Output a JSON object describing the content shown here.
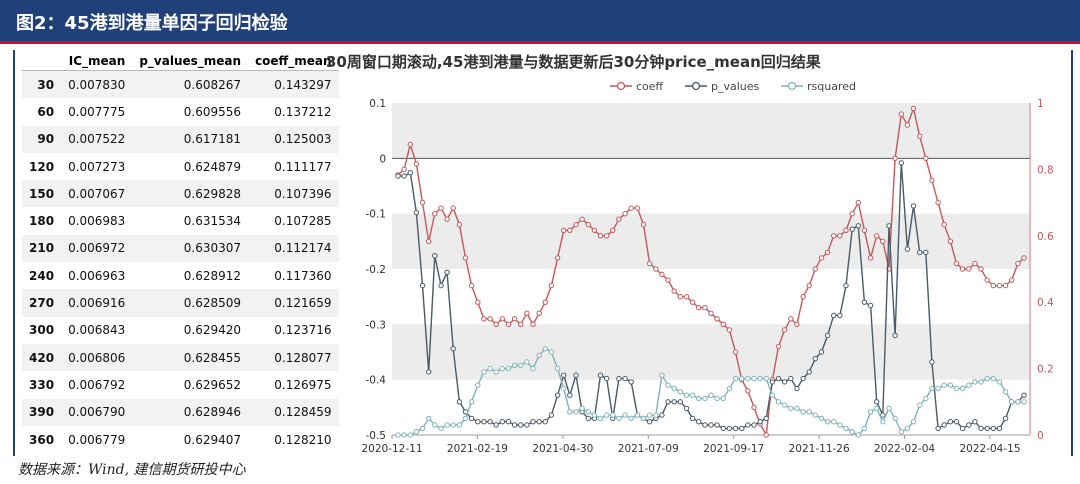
{
  "header": {
    "title": "图2：45港到港量单因子回归检验"
  },
  "table": {
    "columns": [
      "",
      "IC_mean",
      "p_values_mean",
      "coeff_mean"
    ],
    "rows": [
      [
        "30",
        "0.007830",
        "0.608267",
        "0.143297"
      ],
      [
        "60",
        "0.007775",
        "0.609556",
        "0.137212"
      ],
      [
        "90",
        "0.007522",
        "0.617181",
        "0.125003"
      ],
      [
        "120",
        "0.007273",
        "0.624879",
        "0.111177"
      ],
      [
        "150",
        "0.007067",
        "0.629828",
        "0.107396"
      ],
      [
        "180",
        "0.006983",
        "0.631534",
        "0.107285"
      ],
      [
        "210",
        "0.006972",
        "0.630307",
        "0.112174"
      ],
      [
        "240",
        "0.006963",
        "0.628912",
        "0.117360"
      ],
      [
        "270",
        "0.006916",
        "0.628509",
        "0.121659"
      ],
      [
        "300",
        "0.006843",
        "0.629420",
        "0.123716"
      ],
      [
        "420",
        "0.006806",
        "0.628455",
        "0.128077"
      ],
      [
        "330",
        "0.006792",
        "0.629652",
        "0.126975"
      ],
      [
        "390",
        "0.006790",
        "0.628946",
        "0.128459"
      ],
      [
        "360",
        "0.006779",
        "0.629407",
        "0.128210"
      ]
    ]
  },
  "chart_data": {
    "type": "line",
    "title": "30周窗口期滚动,45港到港量与数据更新后30分钟price_mean回归结果",
    "x_ticks": [
      "2020-12-11",
      "2021-02-19",
      "2021-04-30",
      "2021-07-09",
      "2021-09-17",
      "2021-11-26",
      "2022-02-04",
      "2022-04-15"
    ],
    "left_axis": {
      "ylim": [
        -0.5,
        0.1
      ],
      "ticks": [
        "0.1",
        "0",
        "-0.1",
        "-0.2",
        "-0.3",
        "-0.4",
        "-0.5"
      ],
      "series": [
        "coeff"
      ]
    },
    "right_axis": {
      "ylim": [
        0,
        1
      ],
      "ticks": [
        "1",
        "0.8",
        "0.6",
        "0.4",
        "0.2",
        "0"
      ],
      "series": [
        "p_values",
        "rsquared"
      ]
    },
    "legend_position": "top",
    "grid": "alternating horizontal bands",
    "series": [
      {
        "name": "coeff",
        "axis": "left",
        "color": "#c4585c",
        "values": [
          -0.03,
          -0.02,
          0.025,
          -0.01,
          -0.08,
          -0.15,
          -0.1,
          -0.09,
          -0.11,
          -0.09,
          -0.12,
          -0.18,
          -0.23,
          -0.26,
          -0.29,
          -0.29,
          -0.3,
          -0.29,
          -0.3,
          -0.29,
          -0.3,
          -0.28,
          -0.3,
          -0.28,
          -0.26,
          -0.23,
          -0.18,
          -0.13,
          -0.13,
          -0.12,
          -0.11,
          -0.12,
          -0.13,
          -0.14,
          -0.14,
          -0.13,
          -0.11,
          -0.1,
          -0.09,
          -0.09,
          -0.12,
          -0.19,
          -0.2,
          -0.21,
          -0.22,
          -0.24,
          -0.25,
          -0.25,
          -0.26,
          -0.27,
          -0.27,
          -0.28,
          -0.29,
          -0.3,
          -0.31,
          -0.35,
          -0.4,
          -0.42,
          -0.45,
          -0.48,
          -0.5,
          -0.4,
          -0.34,
          -0.31,
          -0.29,
          -0.3,
          -0.25,
          -0.23,
          -0.2,
          -0.18,
          -0.17,
          -0.14,
          -0.14,
          -0.13,
          -0.1,
          -0.08,
          -0.13,
          -0.18,
          -0.14,
          -0.15,
          -0.2,
          0.0,
          0.08,
          0.06,
          0.09,
          0.04,
          0.0,
          -0.04,
          -0.08,
          -0.12,
          -0.15,
          -0.19,
          -0.2,
          -0.2,
          -0.19,
          -0.2,
          -0.22,
          -0.23,
          -0.23,
          -0.23,
          -0.22,
          -0.19,
          -0.18
        ]
      },
      {
        "name": "p_values",
        "axis": "right",
        "color": "#4a5a66",
        "values": [
          0.78,
          0.78,
          0.79,
          0.67,
          0.45,
          0.19,
          0.54,
          0.45,
          0.49,
          0.26,
          0.1,
          0.07,
          0.05,
          0.04,
          0.04,
          0.04,
          0.03,
          0.04,
          0.04,
          0.03,
          0.03,
          0.03,
          0.04,
          0.04,
          0.04,
          0.06,
          0.12,
          0.18,
          0.12,
          0.18,
          0.07,
          0.05,
          0.05,
          0.18,
          0.17,
          0.05,
          0.17,
          0.17,
          0.16,
          0.06,
          0.05,
          0.04,
          0.05,
          0.06,
          0.1,
          0.1,
          0.1,
          0.08,
          0.05,
          0.04,
          0.03,
          0.03,
          0.03,
          0.02,
          0.02,
          0.02,
          0.02,
          0.03,
          0.03,
          0.04,
          0.05,
          0.16,
          0.17,
          0.16,
          0.17,
          0.14,
          0.17,
          0.19,
          0.23,
          0.25,
          0.3,
          0.36,
          0.36,
          0.45,
          0.62,
          0.63,
          0.4,
          0.39,
          0.1,
          0.06,
          0.63,
          0.3,
          0.82,
          0.56,
          0.69,
          0.55,
          0.55,
          0.22,
          0.02,
          0.03,
          0.04,
          0.04,
          0.02,
          0.03,
          0.04,
          0.02,
          0.02,
          0.02,
          0.02,
          0.05,
          0.1,
          0.1,
          0.12
        ]
      },
      {
        "name": "rsquared",
        "axis": "right",
        "color": "#7fb3b8",
        "values": [
          0.0,
          0.0,
          0.0,
          0.01,
          0.02,
          0.05,
          0.03,
          0.02,
          0.03,
          0.03,
          0.03,
          0.05,
          0.1,
          0.15,
          0.19,
          0.2,
          0.19,
          0.2,
          0.2,
          0.21,
          0.21,
          0.22,
          0.2,
          0.24,
          0.26,
          0.25,
          0.2,
          0.14,
          0.07,
          0.07,
          0.08,
          0.07,
          0.06,
          0.05,
          0.06,
          0.06,
          0.05,
          0.06,
          0.05,
          0.06,
          0.05,
          0.06,
          0.06,
          0.18,
          0.15,
          0.14,
          0.13,
          0.12,
          0.12,
          0.11,
          0.11,
          0.12,
          0.11,
          0.11,
          0.14,
          0.17,
          0.17,
          0.17,
          0.17,
          0.17,
          0.17,
          0.12,
          0.1,
          0.09,
          0.08,
          0.08,
          0.07,
          0.07,
          0.06,
          0.05,
          0.04,
          0.04,
          0.03,
          0.02,
          0.01,
          0.0,
          0.02,
          0.07,
          0.08,
          0.04,
          0.08,
          0.05,
          0.01,
          0.02,
          0.04,
          0.09,
          0.11,
          0.14,
          0.14,
          0.15,
          0.15,
          0.14,
          0.14,
          0.15,
          0.16,
          0.16,
          0.17,
          0.17,
          0.16,
          0.13,
          0.1,
          0.1,
          0.1
        ]
      }
    ]
  },
  "source": {
    "text": "数据来源：Wind, 建信期货研投中心"
  },
  "colors": {
    "banner": "#20407a",
    "banner_border": "#c8102e"
  }
}
